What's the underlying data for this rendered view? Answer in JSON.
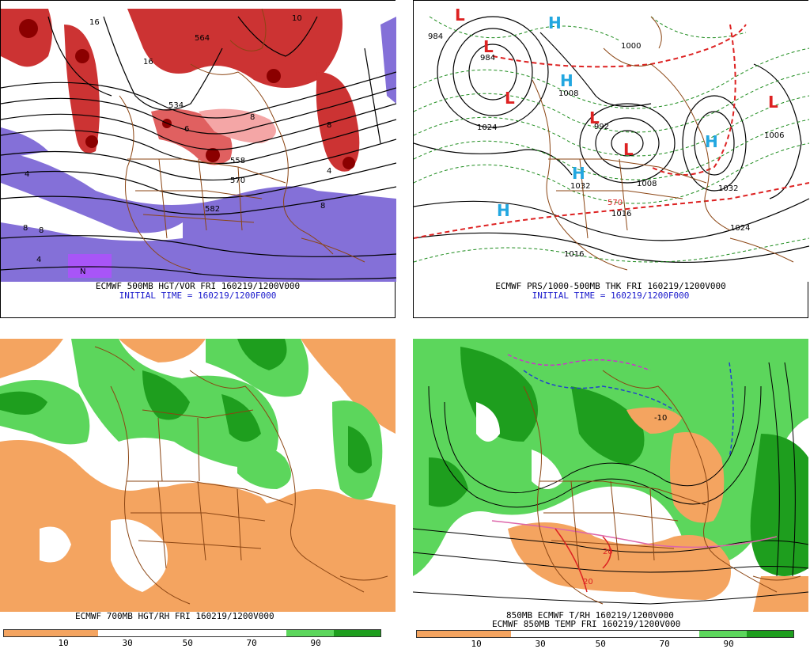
{
  "panels": {
    "p1": {
      "title": "ECMWF 500MB HGT/VOR FRI 160219/1200V000",
      "subtitle": "INITIAL TIME = 160219/1200F000",
      "labels": [
        "534",
        "558",
        "570",
        "582",
        "564",
        "16",
        "16",
        "10",
        "8",
        "8",
        "6",
        "4",
        "4",
        "8",
        "8",
        "4",
        "8",
        "N"
      ]
    },
    "p2": {
      "title": "ECMWF PRS/1000-500MB THK FRI 160219/1200V000",
      "subtitle": "INITIAL TIME = 160219/1200F000",
      "labels": [
        "984",
        "984",
        "1000",
        "1008",
        "992",
        "1032",
        "1024",
        "1016",
        "1032",
        "1024",
        "1016",
        "1006",
        "570",
        "1008"
      ],
      "symbols": [
        "L",
        "L",
        "L",
        "L",
        "L",
        "L",
        "H",
        "H",
        "H",
        "H",
        "H"
      ]
    },
    "p3": {
      "title": "ECMWF 700MB HGT/RH FRI 160219/1200V000",
      "colorbar_ticks": [
        "10",
        "30",
        "50",
        "70",
        "90"
      ]
    },
    "p4": {
      "title1": "850MB ECMWF T/RH 160219/1200V000",
      "title2": "ECMWF 850MB TEMP FRI 160219/1200V000",
      "labels": [
        "-10",
        "20",
        "20"
      ],
      "colorbar_ticks": [
        "10",
        "30",
        "50",
        "70",
        "90"
      ]
    }
  },
  "colors": {
    "vort_red": "#cc3333",
    "vort_dark": "#8b0000",
    "vort_light": "#f4a6a6",
    "purple": "#8470d8",
    "green_dark": "#1e9e1e",
    "green_light": "#5cd65c",
    "orange": "#f4a460",
    "border_brown": "#8b4513",
    "caption_blue": "#1a1acc"
  }
}
